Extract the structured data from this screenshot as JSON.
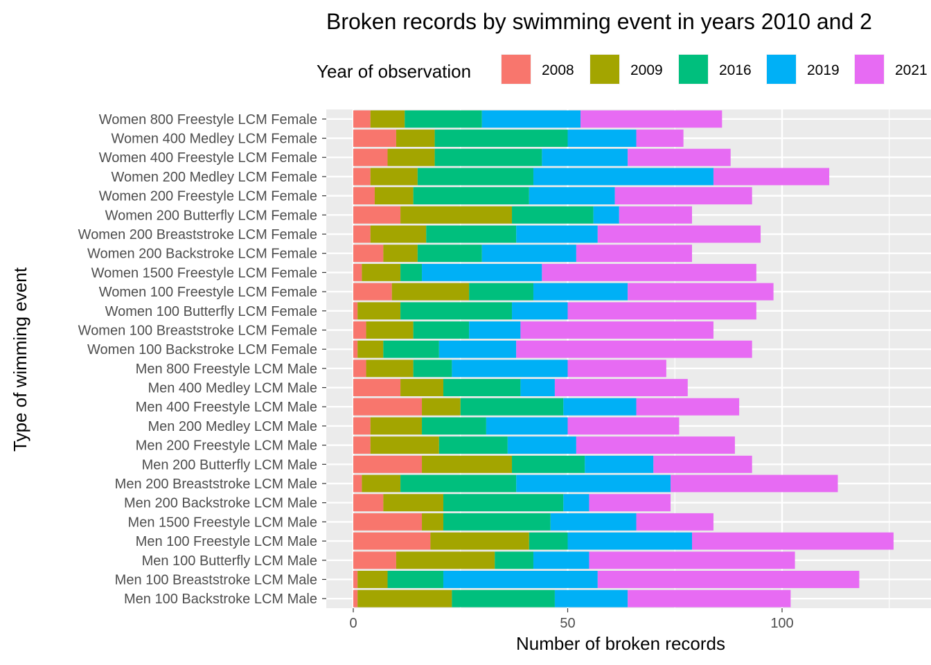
{
  "chart_data": {
    "type": "bar",
    "orientation": "horizontal",
    "stacked": true,
    "title": "Broken records by swimming event in years 2010 and 2",
    "xlabel": "Number of broken records",
    "ylabel": "Type of wimming event",
    "xlim": [
      -6.5,
      128
    ],
    "xticks": [
      0,
      50,
      100
    ],
    "grid": true,
    "legend": {
      "title": "Year of observation",
      "position": "top"
    },
    "categories": [
      "Women 800 Freestyle LCM Female",
      "Women 400 Medley LCM Female",
      "Women 400 Freestyle LCM Female",
      "Women 200 Medley LCM Female",
      "Women 200 Freestyle LCM Female",
      "Women 200 Butterfly LCM Female",
      "Women 200 Breaststroke LCM Female",
      "Women 200 Backstroke LCM Female",
      "Women 1500 Freestyle LCM Female",
      "Women 100 Freestyle LCM Female",
      "Women 100 Butterfly LCM Female",
      "Women 100 Breaststroke LCM Female",
      "Women 100 Backstroke LCM Female",
      "Men 800 Freestyle LCM Male",
      "Men 400 Medley LCM Male",
      "Men 400 Freestyle LCM Male",
      "Men 200 Medley LCM Male",
      "Men 200 Freestyle LCM Male",
      "Men 200 Butterfly LCM Male",
      "Men 200 Breaststroke LCM Male",
      "Men 200 Backstroke LCM Male",
      "Men 1500 Freestyle LCM Male",
      "Men 100 Freestyle LCM Male",
      "Men 100 Butterfly LCM Male",
      "Men 100 Breaststroke LCM Male",
      "Men 100 Backstroke LCM Male"
    ],
    "series": [
      {
        "name": "2008",
        "color": "#F8766D",
        "values": [
          4,
          10,
          8,
          4,
          5,
          11,
          4,
          7,
          2,
          9,
          1,
          3,
          1,
          3,
          11,
          16,
          4,
          4,
          16,
          2,
          7,
          16,
          18,
          10,
          1,
          1
        ]
      },
      {
        "name": "2009",
        "color": "#A3A500",
        "values": [
          8,
          9,
          11,
          11,
          9,
          26,
          13,
          8,
          9,
          18,
          10,
          11,
          6,
          11,
          10,
          9,
          12,
          16,
          21,
          9,
          14,
          5,
          23,
          23,
          7,
          22
        ]
      },
      {
        "name": "2016",
        "color": "#00BF7D",
        "values": [
          18,
          31,
          25,
          27,
          27,
          19,
          21,
          15,
          5,
          15,
          26,
          13,
          13,
          9,
          18,
          24,
          15,
          16,
          17,
          27,
          28,
          25,
          9,
          9,
          13,
          24
        ]
      },
      {
        "name": "2019",
        "color": "#00B0F6",
        "values": [
          23,
          16,
          20,
          42,
          20,
          6,
          19,
          22,
          28,
          22,
          13,
          12,
          18,
          27,
          8,
          17,
          19,
          16,
          16,
          36,
          6,
          20,
          29,
          13,
          36,
          17
        ]
      },
      {
        "name": "2021",
        "color": "#E76BF3",
        "values": [
          33,
          11,
          24,
          27,
          32,
          17,
          38,
          27,
          50,
          34,
          44,
          45,
          55,
          23,
          31,
          24,
          26,
          37,
          23,
          39,
          19,
          18,
          47,
          48,
          61,
          38
        ]
      }
    ]
  }
}
